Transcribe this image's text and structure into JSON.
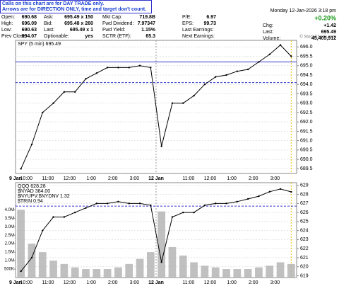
{
  "notice": [
    "Calls on this chart are for DAY TRADE only.",
    "Arrows are for DIRECTION ONLY, time and target don't count."
  ],
  "quote": {
    "date": "Monday 12-Jan-2026 3:18 pm",
    "pct_change": "+0.20%",
    "rows": [
      [
        [
          "Open:",
          "690.68"
        ],
        [
          "Ask:",
          "695.49 x 150"
        ],
        [
          "Mkt Cap:",
          "719.8B"
        ],
        [
          "P/E:",
          "6.97"
        ],
        [
          "Chg:",
          "+1.42"
        ]
      ],
      [
        [
          "High:",
          "696.09"
        ],
        [
          "Bid:",
          "695.48 x 260"
        ],
        [
          "Fwd Dividend:",
          "7.97347"
        ],
        [
          "EPS:",
          "99.73"
        ],
        [
          "Last:",
          "695.49"
        ]
      ],
      [
        [
          "Low:",
          "690.63"
        ],
        [
          "Last:",
          "695.49 x 1"
        ],
        [
          "Fwd Yield:",
          "1.15%"
        ],
        [
          "Last Earnings:"
        ],
        [
          "Volume:",
          "45,405,912"
        ]
      ],
      [
        [
          "Prev Close:",
          "694.07"
        ],
        [
          "Optionable:",
          "yes"
        ],
        [
          "SCTR (ETF):",
          "65.3"
        ],
        [
          "Next Earnings:"
        ]
      ]
    ]
  },
  "copyright": "© StockCharts.com",
  "chart_data": [
    {
      "type": "line",
      "categories": [
        "9 Jan",
        "10:00",
        null,
        "11:00",
        null,
        "12:00",
        null,
        "1:00",
        null,
        "2:00",
        null,
        "3:00",
        null,
        "12 Jan",
        null,
        null,
        "11:00",
        null,
        "12:00",
        null,
        "1:00",
        null,
        "2:00",
        null,
        "3:00",
        null
      ],
      "series": [
        {
          "name": "SPY (5 min) 695.49",
          "color": "#000000",
          "values": [
            689.5,
            690.8,
            692.5,
            693.0,
            693.6,
            693.6,
            694.3,
            694.6,
            694.9,
            694.9,
            694.9,
            695.0,
            694.9,
            690.7,
            693.0,
            693.0,
            693.4,
            694.0,
            694.4,
            694.5,
            694.7,
            694.8,
            695.2,
            695.6,
            696.1,
            695.5
          ]
        }
      ],
      "ylim": [
        689.25,
        696.35
      ],
      "yticks": [
        {
          "value": 689.5,
          "label": "689.5"
        },
        {
          "value": 690,
          "label": "690.0"
        },
        {
          "value": 690.5,
          "label": "690.5"
        },
        {
          "value": 691,
          "label": "691.0"
        },
        {
          "value": 691.5,
          "label": "691.5"
        },
        {
          "value": 692,
          "label": "692.0"
        },
        {
          "value": 692.5,
          "label": "692.5"
        },
        {
          "value": 693,
          "label": "693.0"
        },
        {
          "value": 693.5,
          "label": "693.5"
        },
        {
          "value": 694,
          "label": "694.0"
        },
        {
          "value": 694.5,
          "label": "694.5"
        },
        {
          "value": 695,
          "label": "695.0"
        },
        {
          "value": 695.5,
          "label": "695.5"
        },
        {
          "value": 696,
          "label": "696.0"
        }
      ],
      "hlines": [
        {
          "value": 695.2,
          "color": "#3333cc",
          "dashed": false
        },
        {
          "value": 694.1,
          "color": "#3333cc",
          "dashed": true
        }
      ],
      "grid": true
    },
    {
      "type": "line",
      "categories": [
        "9 Jan",
        "10:00",
        null,
        "11:00",
        null,
        "12:00",
        null,
        "1:00",
        null,
        "2:00",
        null,
        "3:00",
        null,
        "12 Jan",
        null,
        null,
        "11:00",
        null,
        "12:00",
        null,
        "1:00",
        null,
        "2:00",
        null,
        "3:00",
        null
      ],
      "series": [
        {
          "name": "QQQ 628.28",
          "color": "#000000",
          "values": [
            619.5,
            621,
            624,
            625.5,
            625.5,
            626,
            626.5,
            627,
            627,
            627.2,
            627,
            627,
            626.8,
            620.5,
            625.5,
            626,
            626,
            626.8,
            627,
            627,
            627.2,
            627.5,
            627.8,
            628.3,
            628.6,
            628.28
          ]
        }
      ],
      "legend_extra": [
        "$NYAD 384.00",
        "$NYUPV:$NYDNV 1.32",
        "$TRIN 0.94"
      ],
      "ylim": [
        618.8,
        629.3
      ],
      "yticks": [
        619,
        620,
        621,
        622,
        623,
        624,
        625,
        626,
        627,
        628,
        629
      ],
      "hlines": [
        {
          "value": 626.7,
          "color": "#3333cc",
          "dashed": true
        }
      ],
      "grid": true,
      "volume": {
        "color": "#b0b0b0",
        "values": [
          4000000,
          2000000,
          1500000,
          1000000,
          800000,
          600000,
          500000,
          500000,
          500000,
          600000,
          800000,
          1100000,
          1500000,
          3900000,
          1800000,
          1300000,
          900000,
          700000,
          600000,
          500000,
          500000,
          500000,
          600000,
          700000,
          900000,
          800000
        ],
        "ylim": [
          0,
          5600000
        ],
        "yticks": [
          {
            "value": 500000,
            "label": "500K"
          },
          {
            "value": 1000000,
            "label": "1.0M"
          },
          {
            "value": 1500000,
            "label": "1.5M"
          },
          {
            "value": 2000000,
            "label": "2.0M"
          },
          {
            "value": 2500000,
            "label": "2.5M"
          },
          {
            "value": 3000000,
            "label": "3.0M"
          },
          {
            "value": 3500000,
            "label": "3.5M"
          },
          {
            "value": 4000000,
            "label": "4.0M"
          }
        ]
      }
    }
  ]
}
